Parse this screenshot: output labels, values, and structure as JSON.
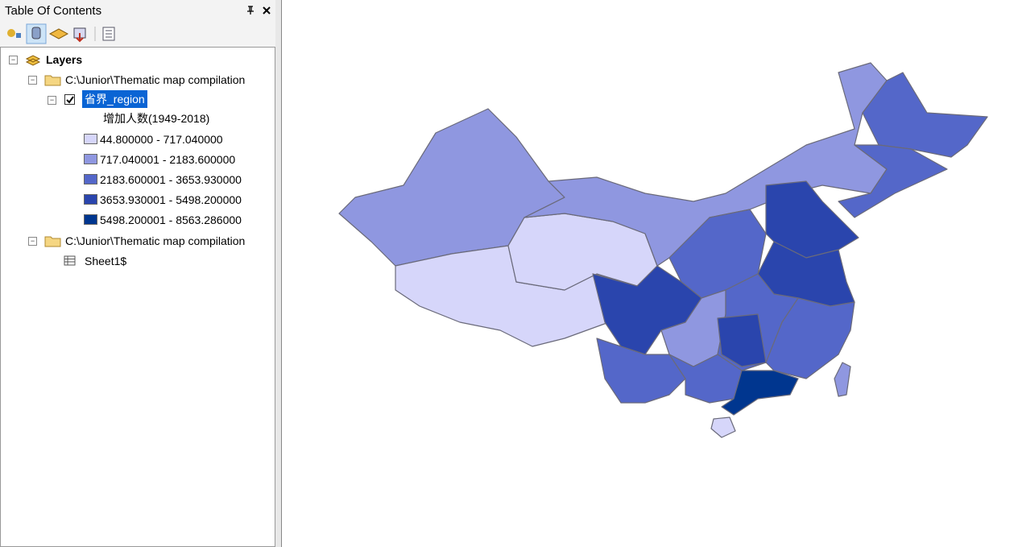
{
  "panel": {
    "title": "Table Of Contents"
  },
  "tree": {
    "root": "Layers",
    "groups": [
      {
        "path": "C:\\Junior\\Thematic map compilation",
        "layer": "省界_region",
        "field": "增加人数(1949-2018)",
        "classes": [
          {
            "label": "44.800000 - 717.040000",
            "color": "#d6d6fa"
          },
          {
            "label": "717.040001 - 2183.600000",
            "color": "#8f97e0"
          },
          {
            "label": "2183.600001 - 3653.930000",
            "color": "#5467c9"
          },
          {
            "label": "3653.930001 - 5498.200000",
            "color": "#2a45ad"
          },
          {
            "label": "5498.200001 - 8563.286000",
            "color": "#00368f"
          }
        ]
      },
      {
        "path": "C:\\Junior\\Thematic map compilation",
        "table": "Sheet1$"
      }
    ]
  }
}
